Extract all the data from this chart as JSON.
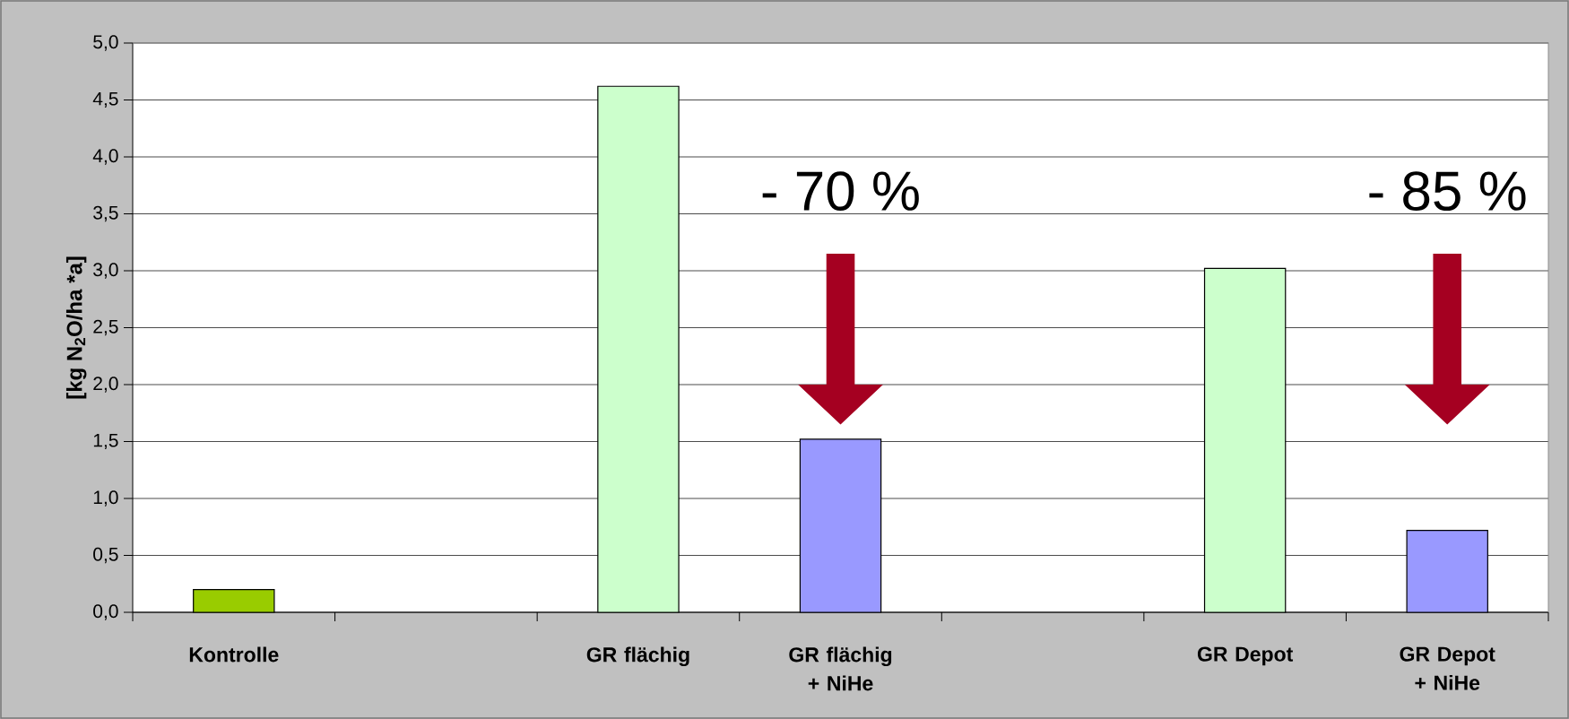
{
  "chart_data": {
    "type": "bar",
    "ylabel": "[kg N$_{2}$O/ha *a]",
    "categories": [
      "Kontrolle",
      null,
      "GR flächig",
      "GR flächig + NiHe",
      null,
      "GR Depot",
      "GR Depot + NiHe"
    ],
    "values": [
      0.2,
      null,
      4.62,
      1.52,
      null,
      3.02,
      0.72
    ],
    "colors": [
      "#99cc00",
      "#ccffcc",
      "#ccffcc",
      "#9999ff",
      "#ccffcc",
      "#ccffcc",
      "#9999ff"
    ],
    "ylim": [
      0,
      5
    ],
    "yticks": [
      {
        "value": 0,
        "label": "0,0"
      },
      {
        "value": 0.5,
        "label": "0,5"
      },
      {
        "value": 1,
        "label": "1,0"
      },
      {
        "value": 1.5,
        "label": "1,5"
      },
      {
        "value": 2,
        "label": "2,0"
      },
      {
        "value": 2.5,
        "label": "2,5"
      },
      {
        "value": 3,
        "label": "3,0"
      },
      {
        "value": 3.5,
        "label": "3,5"
      },
      {
        "value": 4,
        "label": "4,0"
      },
      {
        "value": 4.5,
        "label": "4,5"
      },
      {
        "value": 5,
        "label": "5,0"
      }
    ],
    "grid": "y",
    "annotations": [
      "- 70 %",
      "- 85 %"
    ]
  }
}
